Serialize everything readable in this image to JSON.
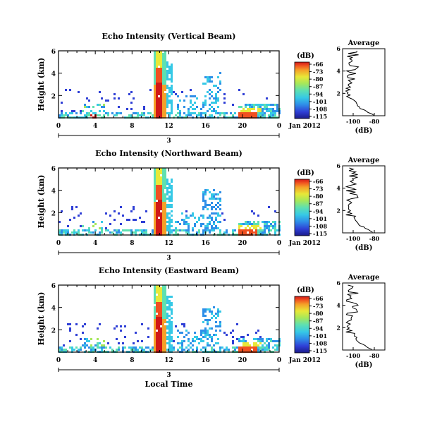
{
  "figure": {
    "date_label": "Jan 2012",
    "xlabel": "Local Time",
    "ylabel": "Height (km)",
    "colorbar_unit": "(dB)",
    "average_title": "Average",
    "average_xlabel": "(dB)",
    "day_marker": "3",
    "colors": {
      "scale": [
        "#1b1b8a",
        "#2f3fd6",
        "#2f8fe8",
        "#36c9e6",
        "#5fe0b0",
        "#a6e85a",
        "#e8e838",
        "#f5a028",
        "#f05020",
        "#d01818"
      ]
    }
  },
  "chart_data": [
    {
      "type": "heatmap",
      "title": "Echo Intensity (Vertical Beam)",
      "xlabel": "",
      "ylabel": "Height (km)",
      "xlim": [
        0,
        24
      ],
      "ylim": [
        0,
        6
      ],
      "x_ticks": [
        "0",
        "4",
        "8",
        "12",
        "16",
        "20",
        "0"
      ],
      "y_ticks": [
        "2",
        "4",
        "6"
      ],
      "colorbar": {
        "unit": "(dB)",
        "ticks": [
          "-66",
          "-73",
          "-80",
          "-87",
          "-94",
          "-101",
          "-108",
          "-115"
        ]
      },
      "average": {
        "title": "Average",
        "xlabel": "(dB)",
        "x_ticks": [
          "-100",
          "-80"
        ],
        "y_ticks": [
          "2",
          "4",
          "6"
        ]
      }
    },
    {
      "type": "heatmap",
      "title": "Echo Intensity (Northward Beam)",
      "xlabel": "",
      "ylabel": "Height (km)",
      "xlim": [
        0,
        24
      ],
      "ylim": [
        0,
        6
      ],
      "x_ticks": [
        "0",
        "4",
        "8",
        "12",
        "16",
        "20",
        "0"
      ],
      "y_ticks": [
        "2",
        "4",
        "6"
      ],
      "colorbar": {
        "unit": "(dB)",
        "ticks": [
          "-66",
          "-73",
          "-80",
          "-87",
          "-94",
          "-101",
          "-108",
          "-115"
        ]
      },
      "average": {
        "title": "Average",
        "xlabel": "(dB)",
        "x_ticks": [
          "-100",
          "-80"
        ],
        "y_ticks": [
          "2",
          "4",
          "6"
        ]
      }
    },
    {
      "type": "heatmap",
      "title": "Echo Intensity (Eastward Beam)",
      "xlabel": "Local Time",
      "ylabel": "Height (km)",
      "xlim": [
        0,
        24
      ],
      "ylim": [
        0,
        6
      ],
      "x_ticks": [
        "0",
        "4",
        "8",
        "12",
        "16",
        "20",
        "0"
      ],
      "y_ticks": [
        "2",
        "4",
        "6"
      ],
      "colorbar": {
        "unit": "(dB)",
        "ticks": [
          "-66",
          "-73",
          "-80",
          "-87",
          "-94",
          "-101",
          "-108",
          "-115"
        ]
      },
      "average": {
        "title": "Average",
        "xlabel": "(dB)",
        "x_ticks": [
          "-100",
          "-80"
        ],
        "y_ticks": [
          "2",
          "4",
          "6"
        ]
      }
    }
  ]
}
